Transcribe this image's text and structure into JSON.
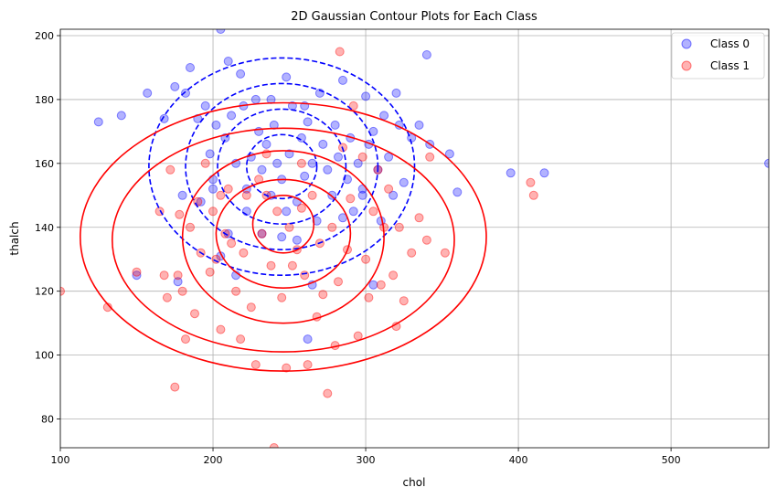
{
  "chart_data": {
    "type": "scatter",
    "title": "2D Gaussian Contour Plots for Each Class",
    "xlabel": "chol",
    "ylabel": "thalch",
    "xlim": [
      100,
      564
    ],
    "ylim": [
      71,
      202
    ],
    "xticks": [
      100,
      200,
      300,
      400,
      500
    ],
    "yticks": [
      80,
      100,
      120,
      140,
      160,
      180,
      200
    ],
    "grid": true,
    "legend_position": "top-right",
    "series": [
      {
        "name": "Class 0",
        "color": "#0000ff",
        "points": [
          [
            125,
            173
          ],
          [
            140,
            175
          ],
          [
            150,
            125
          ],
          [
            157,
            182
          ],
          [
            168,
            174
          ],
          [
            175,
            184
          ],
          [
            177,
            123
          ],
          [
            180,
            150
          ],
          [
            182,
            182
          ],
          [
            185,
            190
          ],
          [
            190,
            174
          ],
          [
            192,
            148
          ],
          [
            195,
            178
          ],
          [
            198,
            163
          ],
          [
            200,
            155
          ],
          [
            202,
            172
          ],
          [
            205,
            202
          ],
          [
            208,
            168
          ],
          [
            210,
            192
          ],
          [
            212,
            175
          ],
          [
            215,
            160
          ],
          [
            218,
            188
          ],
          [
            220,
            178
          ],
          [
            222,
            145
          ],
          [
            225,
            162
          ],
          [
            228,
            180
          ],
          [
            230,
            170
          ],
          [
            232,
            158
          ],
          [
            235,
            166
          ],
          [
            238,
            150
          ],
          [
            240,
            172
          ],
          [
            242,
            160
          ],
          [
            245,
            155
          ],
          [
            248,
            187
          ],
          [
            250,
            163
          ],
          [
            252,
            178
          ],
          [
            255,
            148
          ],
          [
            258,
            168
          ],
          [
            260,
            156
          ],
          [
            262,
            173
          ],
          [
            265,
            160
          ],
          [
            268,
            142
          ],
          [
            270,
            182
          ],
          [
            272,
            166
          ],
          [
            275,
            158
          ],
          [
            278,
            150
          ],
          [
            280,
            172
          ],
          [
            282,
            162
          ],
          [
            285,
            186
          ],
          [
            288,
            155
          ],
          [
            290,
            168
          ],
          [
            292,
            145
          ],
          [
            295,
            160
          ],
          [
            298,
            150
          ],
          [
            300,
            181
          ],
          [
            302,
            166
          ],
          [
            305,
            170
          ],
          [
            308,
            158
          ],
          [
            310,
            142
          ],
          [
            312,
            175
          ],
          [
            315,
            162
          ],
          [
            318,
            150
          ],
          [
            320,
            182
          ],
          [
            322,
            172
          ],
          [
            325,
            154
          ],
          [
            330,
            168
          ],
          [
            335,
            172
          ],
          [
            340,
            194
          ],
          [
            342,
            166
          ],
          [
            355,
            163
          ],
          [
            360,
            151
          ],
          [
            395,
            157
          ],
          [
            417,
            157
          ],
          [
            564,
            160
          ],
          [
            205,
            131
          ],
          [
            215,
            125
          ],
          [
            232,
            138
          ],
          [
            245,
            137
          ],
          [
            262,
            105
          ],
          [
            265,
            122
          ],
          [
            210,
            138
          ],
          [
            255,
            136
          ],
          [
            285,
            143
          ],
          [
            298,
            152
          ],
          [
            305,
            122
          ],
          [
            248,
            145
          ],
          [
            200,
            152
          ],
          [
            222,
            152
          ],
          [
            260,
            178
          ],
          [
            238,
            180
          ]
        ]
      },
      {
        "name": "Class 1",
        "color": "#ff0000",
        "points": [
          [
            100,
            120
          ],
          [
            131,
            115
          ],
          [
            150,
            126
          ],
          [
            165,
            145
          ],
          [
            168,
            125
          ],
          [
            170,
            118
          ],
          [
            172,
            158
          ],
          [
            175,
            90
          ],
          [
            177,
            125
          ],
          [
            180,
            120
          ],
          [
            182,
            105
          ],
          [
            185,
            140
          ],
          [
            188,
            113
          ],
          [
            190,
            148
          ],
          [
            192,
            132
          ],
          [
            195,
            160
          ],
          [
            198,
            126
          ],
          [
            200,
            145
          ],
          [
            202,
            130
          ],
          [
            205,
            108
          ],
          [
            208,
            138
          ],
          [
            210,
            152
          ],
          [
            212,
            135
          ],
          [
            215,
            120
          ],
          [
            218,
            105
          ],
          [
            220,
            132
          ],
          [
            222,
            150
          ],
          [
            225,
            115
          ],
          [
            228,
            97
          ],
          [
            230,
            155
          ],
          [
            232,
            138
          ],
          [
            235,
            163
          ],
          [
            238,
            128
          ],
          [
            240,
            71
          ],
          [
            242,
            145
          ],
          [
            245,
            118
          ],
          [
            248,
            96
          ],
          [
            250,
            140
          ],
          [
            252,
            128
          ],
          [
            255,
            133
          ],
          [
            258,
            146
          ],
          [
            260,
            125
          ],
          [
            262,
            97
          ],
          [
            265,
            150
          ],
          [
            268,
            112
          ],
          [
            270,
            135
          ],
          [
            272,
            119
          ],
          [
            275,
            88
          ],
          [
            278,
            140
          ],
          [
            280,
            103
          ],
          [
            282,
            123
          ],
          [
            283,
            195
          ],
          [
            285,
            165
          ],
          [
            288,
            133
          ],
          [
            290,
            149
          ],
          [
            292,
            178
          ],
          [
            295,
            106
          ],
          [
            298,
            162
          ],
          [
            300,
            130
          ],
          [
            302,
            118
          ],
          [
            305,
            145
          ],
          [
            308,
            158
          ],
          [
            310,
            122
          ],
          [
            312,
            140
          ],
          [
            315,
            152
          ],
          [
            318,
            125
          ],
          [
            320,
            109
          ],
          [
            322,
            140
          ],
          [
            325,
            117
          ],
          [
            330,
            132
          ],
          [
            335,
            143
          ],
          [
            340,
            136
          ],
          [
            342,
            162
          ],
          [
            352,
            132
          ],
          [
            408,
            154
          ],
          [
            410,
            150
          ],
          [
            178,
            144
          ],
          [
            205,
            150
          ],
          [
            235,
            150
          ],
          [
            258,
            160
          ]
        ]
      }
    ],
    "contours": [
      {
        "series": "Class 0",
        "color": "#0000ff",
        "linestyle": "dashed",
        "levels": [
          {
            "cx": 245,
            "cy": 159,
            "rx": 23,
            "ry": 10
          },
          {
            "cx": 245,
            "cy": 159,
            "rx": 42,
            "ry": 18
          },
          {
            "cx": 245,
            "cy": 159,
            "rx": 63,
            "ry": 26
          },
          {
            "cx": 245,
            "cy": 159,
            "rx": 87,
            "ry": 34
          }
        ]
      },
      {
        "series": "Class 1",
        "color": "#ff0000",
        "linestyle": "solid",
        "levels": [
          {
            "cx": 246,
            "cy": 141,
            "rx": 20,
            "ry": 9
          },
          {
            "cx": 246,
            "cy": 138,
            "rx": 44,
            "ry": 17
          },
          {
            "cx": 246,
            "cy": 137,
            "rx": 66,
            "ry": 27
          },
          {
            "cx": 246,
            "cy": 136,
            "rx": 112,
            "ry": 35
          },
          {
            "cx": 246,
            "cy": 137,
            "rx": 133,
            "ry": 42
          }
        ]
      }
    ]
  }
}
